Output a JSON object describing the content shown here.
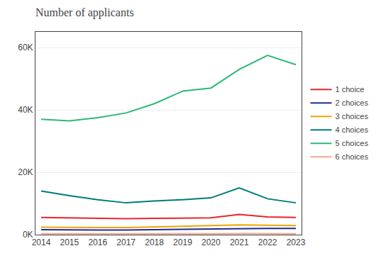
{
  "chart_data": {
    "type": "line",
    "title": "Number of applicants",
    "x": [
      2014,
      2015,
      2016,
      2017,
      2018,
      2019,
      2020,
      2021,
      2022,
      2023
    ],
    "series": [
      {
        "name": "1 choice",
        "color": "#e8252a",
        "values": [
          5500,
          5400,
          5200,
          5100,
          5200,
          5300,
          5400,
          6500,
          5700,
          5500
        ]
      },
      {
        "name": "2 choices",
        "color": "#1e2d8f",
        "values": [
          1600,
          1500,
          1500,
          1500,
          1600,
          1700,
          1800,
          2000,
          2000,
          2000
        ]
      },
      {
        "name": "3 choices",
        "color": "#f0a500",
        "values": [
          2400,
          2300,
          2300,
          2300,
          2500,
          2600,
          2800,
          3100,
          3000,
          2900
        ]
      },
      {
        "name": "4 choices",
        "color": "#007b7b",
        "values": [
          14000,
          12500,
          11200,
          10200,
          10800,
          11200,
          11800,
          15000,
          11500,
          10200
        ]
      },
      {
        "name": "5 choices",
        "color": "#2db87a",
        "values": [
          37000,
          36500,
          37500,
          39000,
          42000,
          46000,
          47000,
          53000,
          57500,
          54500
        ]
      },
      {
        "name": "6 choices",
        "color": "#f9a58c",
        "values": [
          280,
          260,
          250,
          250,
          260,
          270,
          290,
          330,
          300,
          290
        ]
      }
    ],
    "xlim": [
      2013.8,
      2023.2
    ],
    "xticks": [
      2014,
      2015,
      2016,
      2017,
      2018,
      2019,
      2020,
      2021,
      2022,
      2023
    ],
    "ylim": [
      0,
      65000
    ],
    "yticks": [
      {
        "value": 0,
        "label": "0K"
      },
      {
        "value": 20000,
        "label": "20K"
      },
      {
        "value": 40000,
        "label": "40K"
      },
      {
        "value": 60000,
        "label": "60K"
      }
    ],
    "grid": "y",
    "legend": "right"
  }
}
